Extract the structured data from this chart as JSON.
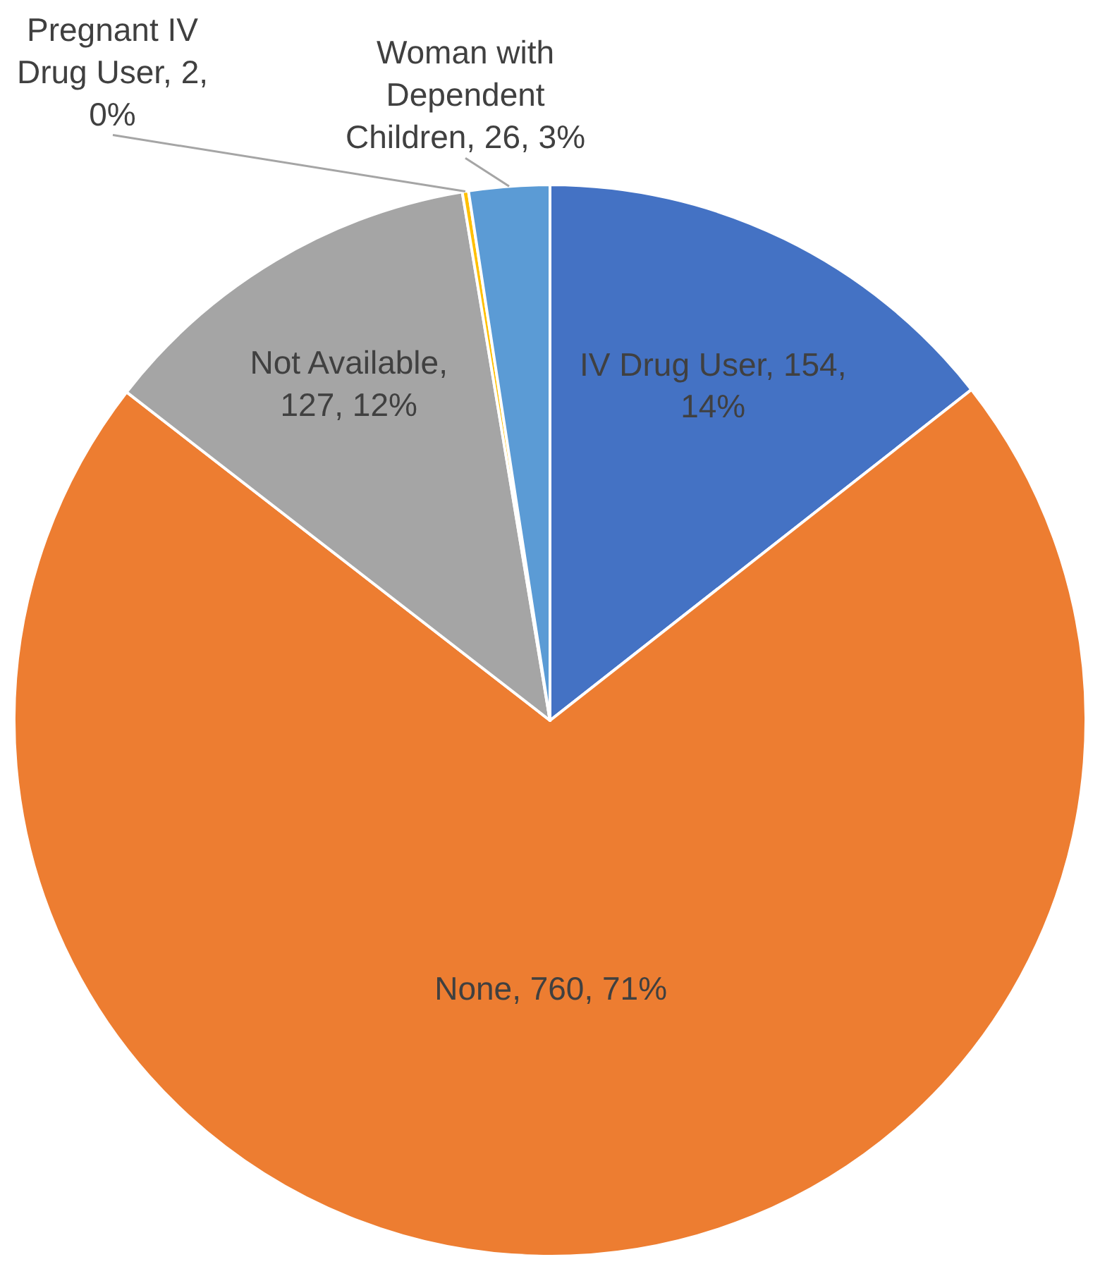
{
  "chart_data": {
    "type": "pie",
    "categories": [
      "IV Drug User",
      "None",
      "Not Available",
      "Pregnant IV Drug User",
      "Woman with Dependent Children"
    ],
    "values": [
      154,
      760,
      127,
      2,
      26
    ],
    "colors": [
      "#4472c4",
      "#ed7d31",
      "#a5a5a5",
      "#ffc000",
      "#5b9bd5"
    ],
    "value_labels": [
      ", 154, 14%",
      ", 760, 71%",
      ", 127, 12%",
      ", 2, 0%",
      ", 26, 3%"
    ],
    "legend": false
  }
}
